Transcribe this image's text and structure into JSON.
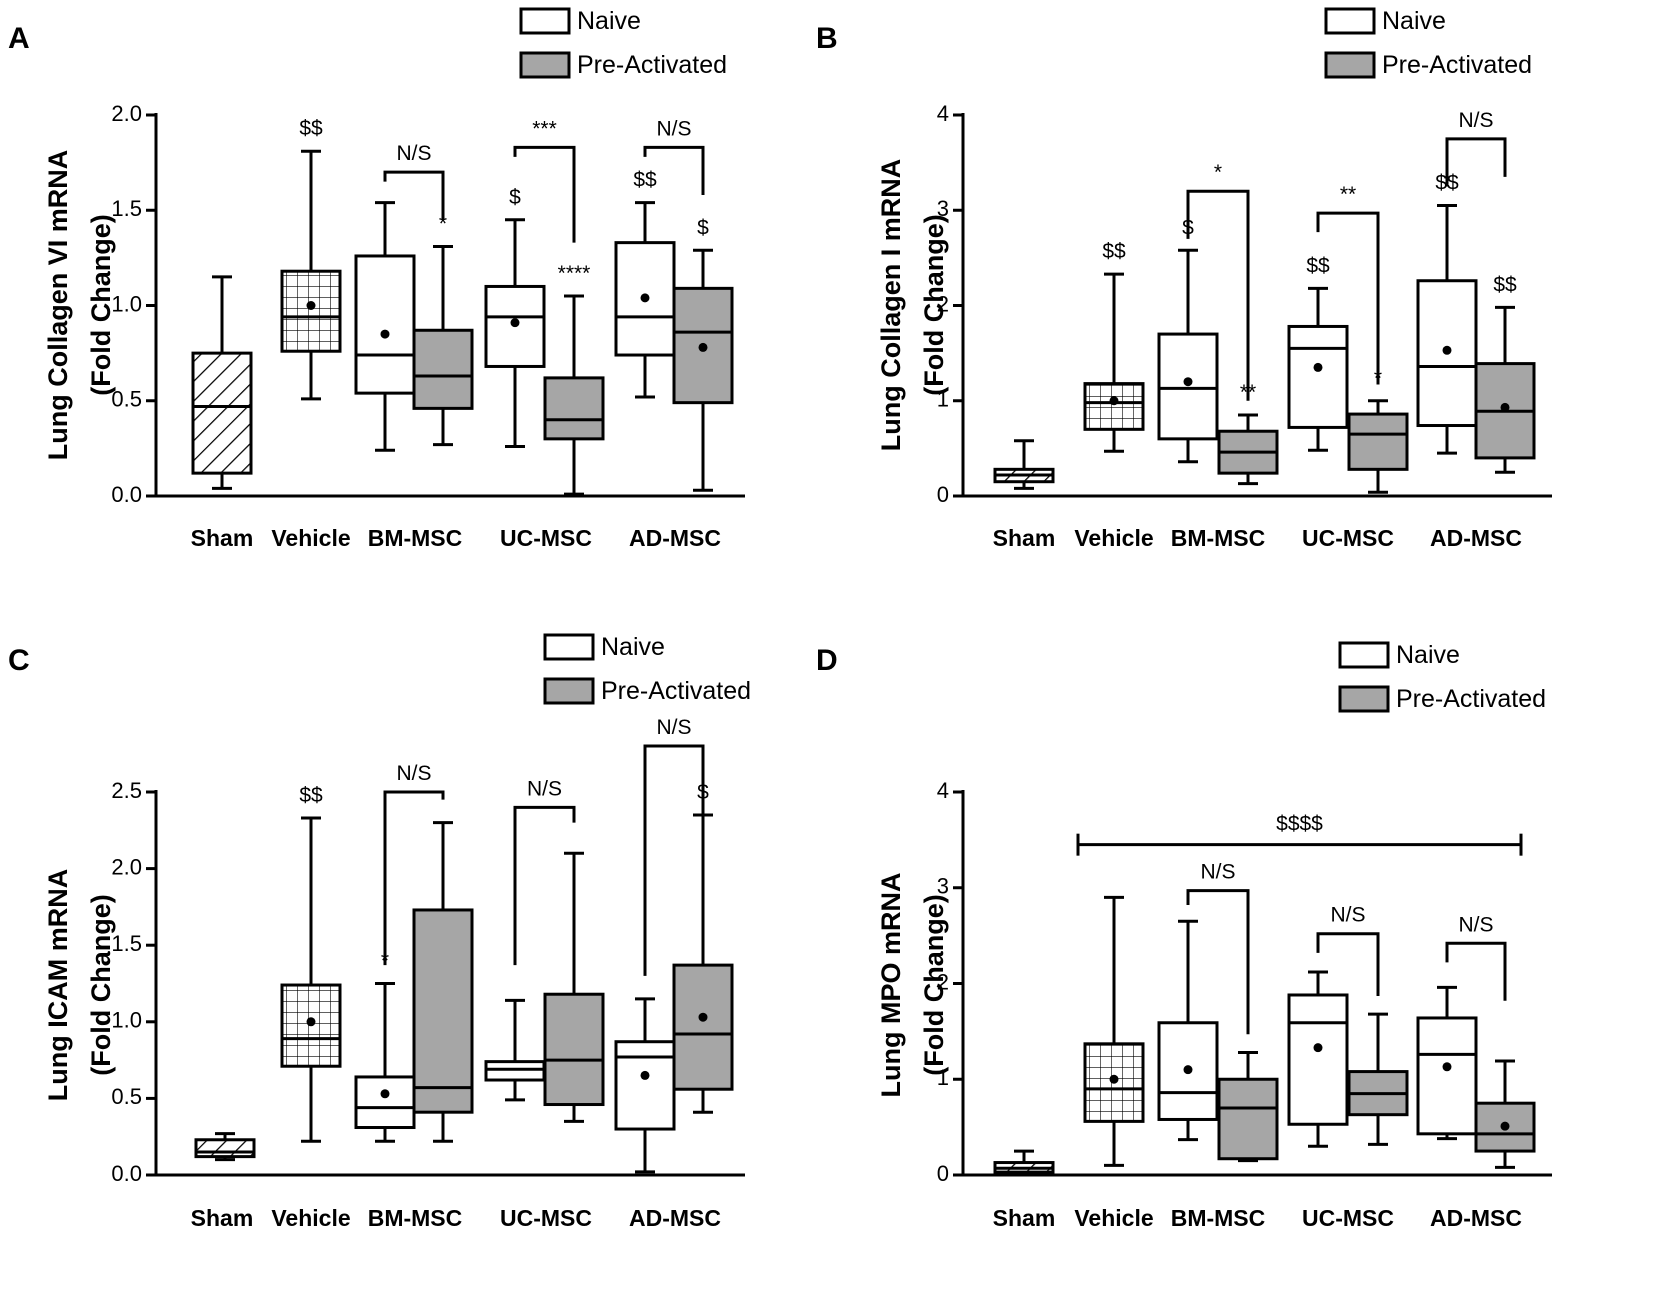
{
  "legend": {
    "naive": "Naive",
    "pre_activated": "Pre-Activated"
  },
  "colors": {
    "naive_fill": "#ffffff",
    "pre_activated_fill": "#a6a6a6",
    "stroke": "#000000"
  },
  "chart_data": [
    {
      "type": "box",
      "panel": "A",
      "ylabel": "Lung Collagen VI mRNA",
      "ylabel2": "(Fold Change)",
      "ylim": [
        0,
        2.0
      ],
      "yticks": [
        "0.0",
        "0.5",
        "1.0",
        "1.5",
        "2.0"
      ],
      "ytick_values": [
        0,
        0.5,
        1.0,
        1.5,
        2.0
      ],
      "categories": [
        "Sham",
        "Vehicle",
        "BM-MSC",
        "UC-MSC",
        "AD-MSC"
      ],
      "boxes": [
        {
          "group": "Sham",
          "kind": "sham",
          "min": 0.04,
          "q1": 0.12,
          "median": 0.47,
          "q3": 0.75,
          "max": 1.15,
          "mean": null,
          "label": ""
        },
        {
          "group": "Vehicle",
          "kind": "vehicle",
          "min": 0.51,
          "q1": 0.76,
          "median": 0.94,
          "q3": 1.18,
          "max": 1.81,
          "mean": 1.0,
          "label": "$$"
        },
        {
          "group": "BM-MSC",
          "kind": "naive",
          "min": 0.24,
          "q1": 0.54,
          "median": 0.74,
          "q3": 1.26,
          "max": 1.54,
          "mean": 0.85,
          "label": ""
        },
        {
          "group": "BM-MSC",
          "kind": "pre",
          "min": 0.27,
          "q1": 0.46,
          "median": 0.63,
          "q3": 0.87,
          "max": 1.31,
          "mean": null,
          "label": "*"
        },
        {
          "group": "UC-MSC",
          "kind": "naive",
          "min": 0.26,
          "q1": 0.68,
          "median": 0.94,
          "q3": 1.1,
          "max": 1.45,
          "mean": 0.91,
          "label": "$"
        },
        {
          "group": "UC-MSC",
          "kind": "pre",
          "min": 0.01,
          "q1": 0.3,
          "median": 0.4,
          "q3": 0.62,
          "max": 1.05,
          "mean": null,
          "label": "****"
        },
        {
          "group": "AD-MSC",
          "kind": "naive",
          "min": 0.52,
          "q1": 0.74,
          "median": 0.94,
          "q3": 1.33,
          "max": 1.54,
          "mean": 1.04,
          "label": "$$"
        },
        {
          "group": "AD-MSC",
          "kind": "pre",
          "min": 0.03,
          "q1": 0.49,
          "median": 0.86,
          "q3": 1.09,
          "max": 1.29,
          "mean": 0.78,
          "label": "$"
        }
      ],
      "brackets": [
        {
          "group": "BM-MSC",
          "y": 1.7,
          "dropA": 0.05,
          "dropB": 0.25,
          "label": "N/S"
        },
        {
          "group": "UC-MSC",
          "y": 1.83,
          "dropA": 0.05,
          "dropB": 0.5,
          "label": "***"
        },
        {
          "group": "AD-MSC",
          "y": 1.83,
          "dropA": 0.05,
          "dropB": 0.25,
          "label": "N/S"
        }
      ],
      "line": null
    },
    {
      "type": "box",
      "panel": "B",
      "ylabel": "Lung Collagen I mRNA",
      "ylabel2": "(Fold Change)",
      "ylim": [
        0,
        4
      ],
      "yticks": [
        "0",
        "1",
        "2",
        "3",
        "4"
      ],
      "ytick_values": [
        0,
        1,
        2,
        3,
        4
      ],
      "categories": [
        "Sham",
        "Vehicle",
        "BM-MSC",
        "UC-MSC",
        "AD-MSC"
      ],
      "boxes": [
        {
          "group": "Sham",
          "kind": "sham",
          "min": 0.08,
          "q1": 0.15,
          "median": 0.22,
          "q3": 0.28,
          "max": 0.58,
          "mean": null,
          "label": ""
        },
        {
          "group": "Vehicle",
          "kind": "vehicle",
          "min": 0.47,
          "q1": 0.7,
          "median": 0.98,
          "q3": 1.18,
          "max": 2.33,
          "mean": 1.0,
          "label": "$$"
        },
        {
          "group": "BM-MSC",
          "kind": "naive",
          "min": 0.36,
          "q1": 0.6,
          "median": 1.13,
          "q3": 1.7,
          "max": 2.58,
          "mean": 1.2,
          "label": "$"
        },
        {
          "group": "BM-MSC",
          "kind": "pre",
          "min": 0.13,
          "q1": 0.24,
          "median": 0.46,
          "q3": 0.68,
          "max": 0.85,
          "mean": null,
          "label": "**"
        },
        {
          "group": "UC-MSC",
          "kind": "naive",
          "min": 0.48,
          "q1": 0.72,
          "median": 1.55,
          "q3": 1.78,
          "max": 2.18,
          "mean": 1.35,
          "label": "$$"
        },
        {
          "group": "UC-MSC",
          "kind": "pre",
          "min": 0.04,
          "q1": 0.28,
          "median": 0.65,
          "q3": 0.86,
          "max": 1.0,
          "mean": null,
          "label": "*"
        },
        {
          "group": "AD-MSC",
          "kind": "naive",
          "min": 0.45,
          "q1": 0.74,
          "median": 1.36,
          "q3": 2.26,
          "max": 3.05,
          "mean": 1.53,
          "label": "$$"
        },
        {
          "group": "AD-MSC",
          "kind": "pre",
          "min": 0.25,
          "q1": 0.4,
          "median": 0.89,
          "q3": 1.39,
          "max": 1.98,
          "mean": 0.93,
          "label": "$$"
        }
      ],
      "brackets": [
        {
          "group": "BM-MSC",
          "y": 3.2,
          "dropA": 0.5,
          "dropB": 2.2,
          "label": "*"
        },
        {
          "group": "UC-MSC",
          "y": 2.97,
          "dropA": 0.2,
          "dropB": 1.8,
          "label": "**"
        },
        {
          "group": "AD-MSC",
          "y": 3.75,
          "dropA": 0.5,
          "dropB": 0.4,
          "label": "N/S"
        }
      ],
      "line": null
    },
    {
      "type": "box",
      "panel": "C",
      "ylabel": "Lung ICAM mRNA",
      "ylabel2": "(Fold Change)",
      "ylim": [
        0,
        2.5
      ],
      "yticks": [
        "0.0",
        "0.5",
        "1.0",
        "1.5",
        "2.0",
        "2.5"
      ],
      "ytick_values": [
        0,
        0.5,
        1.0,
        1.5,
        2.0,
        2.5
      ],
      "categories": [
        "Sham",
        "Vehicle",
        "BM-MSC",
        "UC-MSC",
        "AD-MSC"
      ],
      "boxes": [
        {
          "group": "Sham",
          "kind": "sham",
          "min": 0.1,
          "q1": 0.12,
          "median": 0.15,
          "q3": 0.23,
          "max": 0.27,
          "mean": null,
          "label": ""
        },
        {
          "group": "Vehicle",
          "kind": "vehicle",
          "min": 0.22,
          "q1": 0.71,
          "median": 0.89,
          "q3": 1.24,
          "max": 2.33,
          "mean": 1.0,
          "label": "$$"
        },
        {
          "group": "BM-MSC",
          "kind": "naive",
          "min": 0.22,
          "q1": 0.31,
          "median": 0.44,
          "q3": 0.64,
          "max": 1.25,
          "mean": 0.53,
          "label": "*"
        },
        {
          "group": "BM-MSC",
          "kind": "pre",
          "min": 0.22,
          "q1": 0.41,
          "median": 0.57,
          "q3": 1.73,
          "max": 2.3,
          "mean": null,
          "label": ""
        },
        {
          "group": "UC-MSC",
          "kind": "naive",
          "min": 0.49,
          "q1": 0.62,
          "median": 0.69,
          "q3": 0.74,
          "max": 1.14,
          "mean": null,
          "label": ""
        },
        {
          "group": "UC-MSC",
          "kind": "pre",
          "min": 0.35,
          "q1": 0.46,
          "median": 0.75,
          "q3": 1.18,
          "max": 2.1,
          "mean": null,
          "label": ""
        },
        {
          "group": "AD-MSC",
          "kind": "naive",
          "min": 0.02,
          "q1": 0.3,
          "median": 0.77,
          "q3": 0.87,
          "max": 1.15,
          "mean": 0.65,
          "label": ""
        },
        {
          "group": "AD-MSC",
          "kind": "pre",
          "min": 0.41,
          "q1": 0.56,
          "median": 0.92,
          "q3": 1.37,
          "max": 2.35,
          "mean": 1.03,
          "label": "$"
        }
      ],
      "brackets": [
        {
          "group": "BM-MSC",
          "y": 2.5,
          "dropA": 1.13,
          "dropB": 0.05,
          "label": "N/S"
        },
        {
          "group": "UC-MSC",
          "y": 2.4,
          "dropA": 1.03,
          "dropB": 0.1,
          "label": "N/S"
        },
        {
          "group": "AD-MSC",
          "y": 2.8,
          "dropA": 1.5,
          "dropB": 0.48,
          "label": "N/S"
        }
      ],
      "line": null
    },
    {
      "type": "box",
      "panel": "D",
      "ylabel": "Lung MPO mRNA",
      "ylabel2": "(Fold Change)",
      "ylim": [
        0,
        4
      ],
      "yticks": [
        "0",
        "1",
        "2",
        "3",
        "4"
      ],
      "ytick_values": [
        0,
        1,
        2,
        3,
        4
      ],
      "categories": [
        "Sham",
        "Vehicle",
        "BM-MSC",
        "UC-MSC",
        "AD-MSC"
      ],
      "boxes": [
        {
          "group": "Sham",
          "kind": "sham",
          "min": 0.0,
          "q1": 0.03,
          "median": 0.07,
          "q3": 0.13,
          "max": 0.25,
          "mean": null,
          "label": ""
        },
        {
          "group": "Vehicle",
          "kind": "vehicle",
          "min": 0.1,
          "q1": 0.56,
          "median": 0.9,
          "q3": 1.37,
          "max": 2.9,
          "mean": 1.0,
          "label": ""
        },
        {
          "group": "BM-MSC",
          "kind": "naive",
          "min": 0.37,
          "q1": 0.58,
          "median": 0.86,
          "q3": 1.59,
          "max": 2.65,
          "mean": 1.1,
          "label": ""
        },
        {
          "group": "BM-MSC",
          "kind": "pre",
          "min": 0.15,
          "q1": 0.17,
          "median": 0.7,
          "q3": 1.0,
          "max": 1.28,
          "mean": null,
          "label": ""
        },
        {
          "group": "UC-MSC",
          "kind": "naive",
          "min": 0.3,
          "q1": 0.53,
          "median": 1.59,
          "q3": 1.88,
          "max": 2.12,
          "mean": 1.33,
          "label": ""
        },
        {
          "group": "UC-MSC",
          "kind": "pre",
          "min": 0.32,
          "q1": 0.63,
          "median": 0.85,
          "q3": 1.08,
          "max": 1.68,
          "mean": null,
          "label": ""
        },
        {
          "group": "AD-MSC",
          "kind": "naive",
          "min": 0.38,
          "q1": 0.43,
          "median": 1.26,
          "q3": 1.64,
          "max": 1.96,
          "mean": 1.13,
          "label": ""
        },
        {
          "group": "AD-MSC",
          "kind": "pre",
          "min": 0.08,
          "q1": 0.25,
          "median": 0.43,
          "q3": 0.75,
          "max": 1.19,
          "mean": 0.51,
          "label": ""
        }
      ],
      "brackets": [
        {
          "group": "BM-MSC",
          "y": 2.97,
          "dropA": 0.15,
          "dropB": 1.5,
          "label": "N/S"
        },
        {
          "group": "UC-MSC",
          "y": 2.52,
          "dropA": 0.2,
          "dropB": 0.65,
          "label": "N/S"
        },
        {
          "group": "AD-MSC",
          "y": 2.42,
          "dropA": 0.2,
          "dropB": 0.6,
          "label": "N/S"
        }
      ],
      "line": {
        "x1": "Vehicle",
        "x2": "AD-MSC-pre",
        "y": 3.45,
        "label": "$$$$"
      }
    }
  ]
}
